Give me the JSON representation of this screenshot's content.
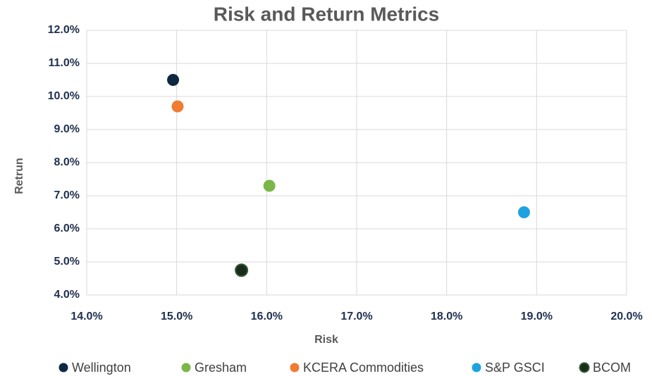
{
  "chart_data": {
    "type": "scatter",
    "title": "Risk and Return Metrics",
    "x_label": "Risk",
    "y_label": "Retrun",
    "series": [
      {
        "name": "Wellington",
        "color": "#0e2841",
        "x": [
          14.96
        ],
        "values": [
          10.5
        ]
      },
      {
        "name": "Gresham",
        "color": "#7ab648",
        "x": [
          16.03
        ],
        "values": [
          7.3
        ]
      },
      {
        "name": "KCERA Commodities",
        "color": "#f07b32",
        "x": [
          15.01
        ],
        "values": [
          9.7
        ]
      },
      {
        "name": "S&P GSCI",
        "color": "#1fa3e0",
        "x": [
          18.86
        ],
        "values": [
          6.5
        ]
      },
      {
        "name": "BCOM",
        "color": "#1b2b1b",
        "x": [
          15.72
        ],
        "values": [
          4.75
        ]
      }
    ],
    "xlim": [
      14,
      20
    ],
    "xticks": [
      {
        "value": 14,
        "label": "14.0%"
      },
      {
        "value": 15,
        "label": "15.0%"
      },
      {
        "value": 16,
        "label": "16.0%"
      },
      {
        "value": 17,
        "label": "17.0%"
      },
      {
        "value": 18,
        "label": "18.0%"
      },
      {
        "value": 19,
        "label": "19.0%"
      },
      {
        "value": 20,
        "label": "20.0%"
      }
    ],
    "ylim": [
      4,
      12
    ],
    "yticks": [
      {
        "value": 4,
        "label": "4.0%"
      },
      {
        "value": 5,
        "label": "5.0%"
      },
      {
        "value": 6,
        "label": "6.0%"
      },
      {
        "value": 7,
        "label": "7.0%"
      },
      {
        "value": 8,
        "label": "8.0%"
      },
      {
        "value": 9,
        "label": "9.0%"
      },
      {
        "value": 10,
        "label": "10.0%"
      },
      {
        "value": 11,
        "label": "11.0%"
      },
      {
        "value": 12,
        "label": "12.0%"
      }
    ],
    "grid": true,
    "legend": "bottom"
  }
}
